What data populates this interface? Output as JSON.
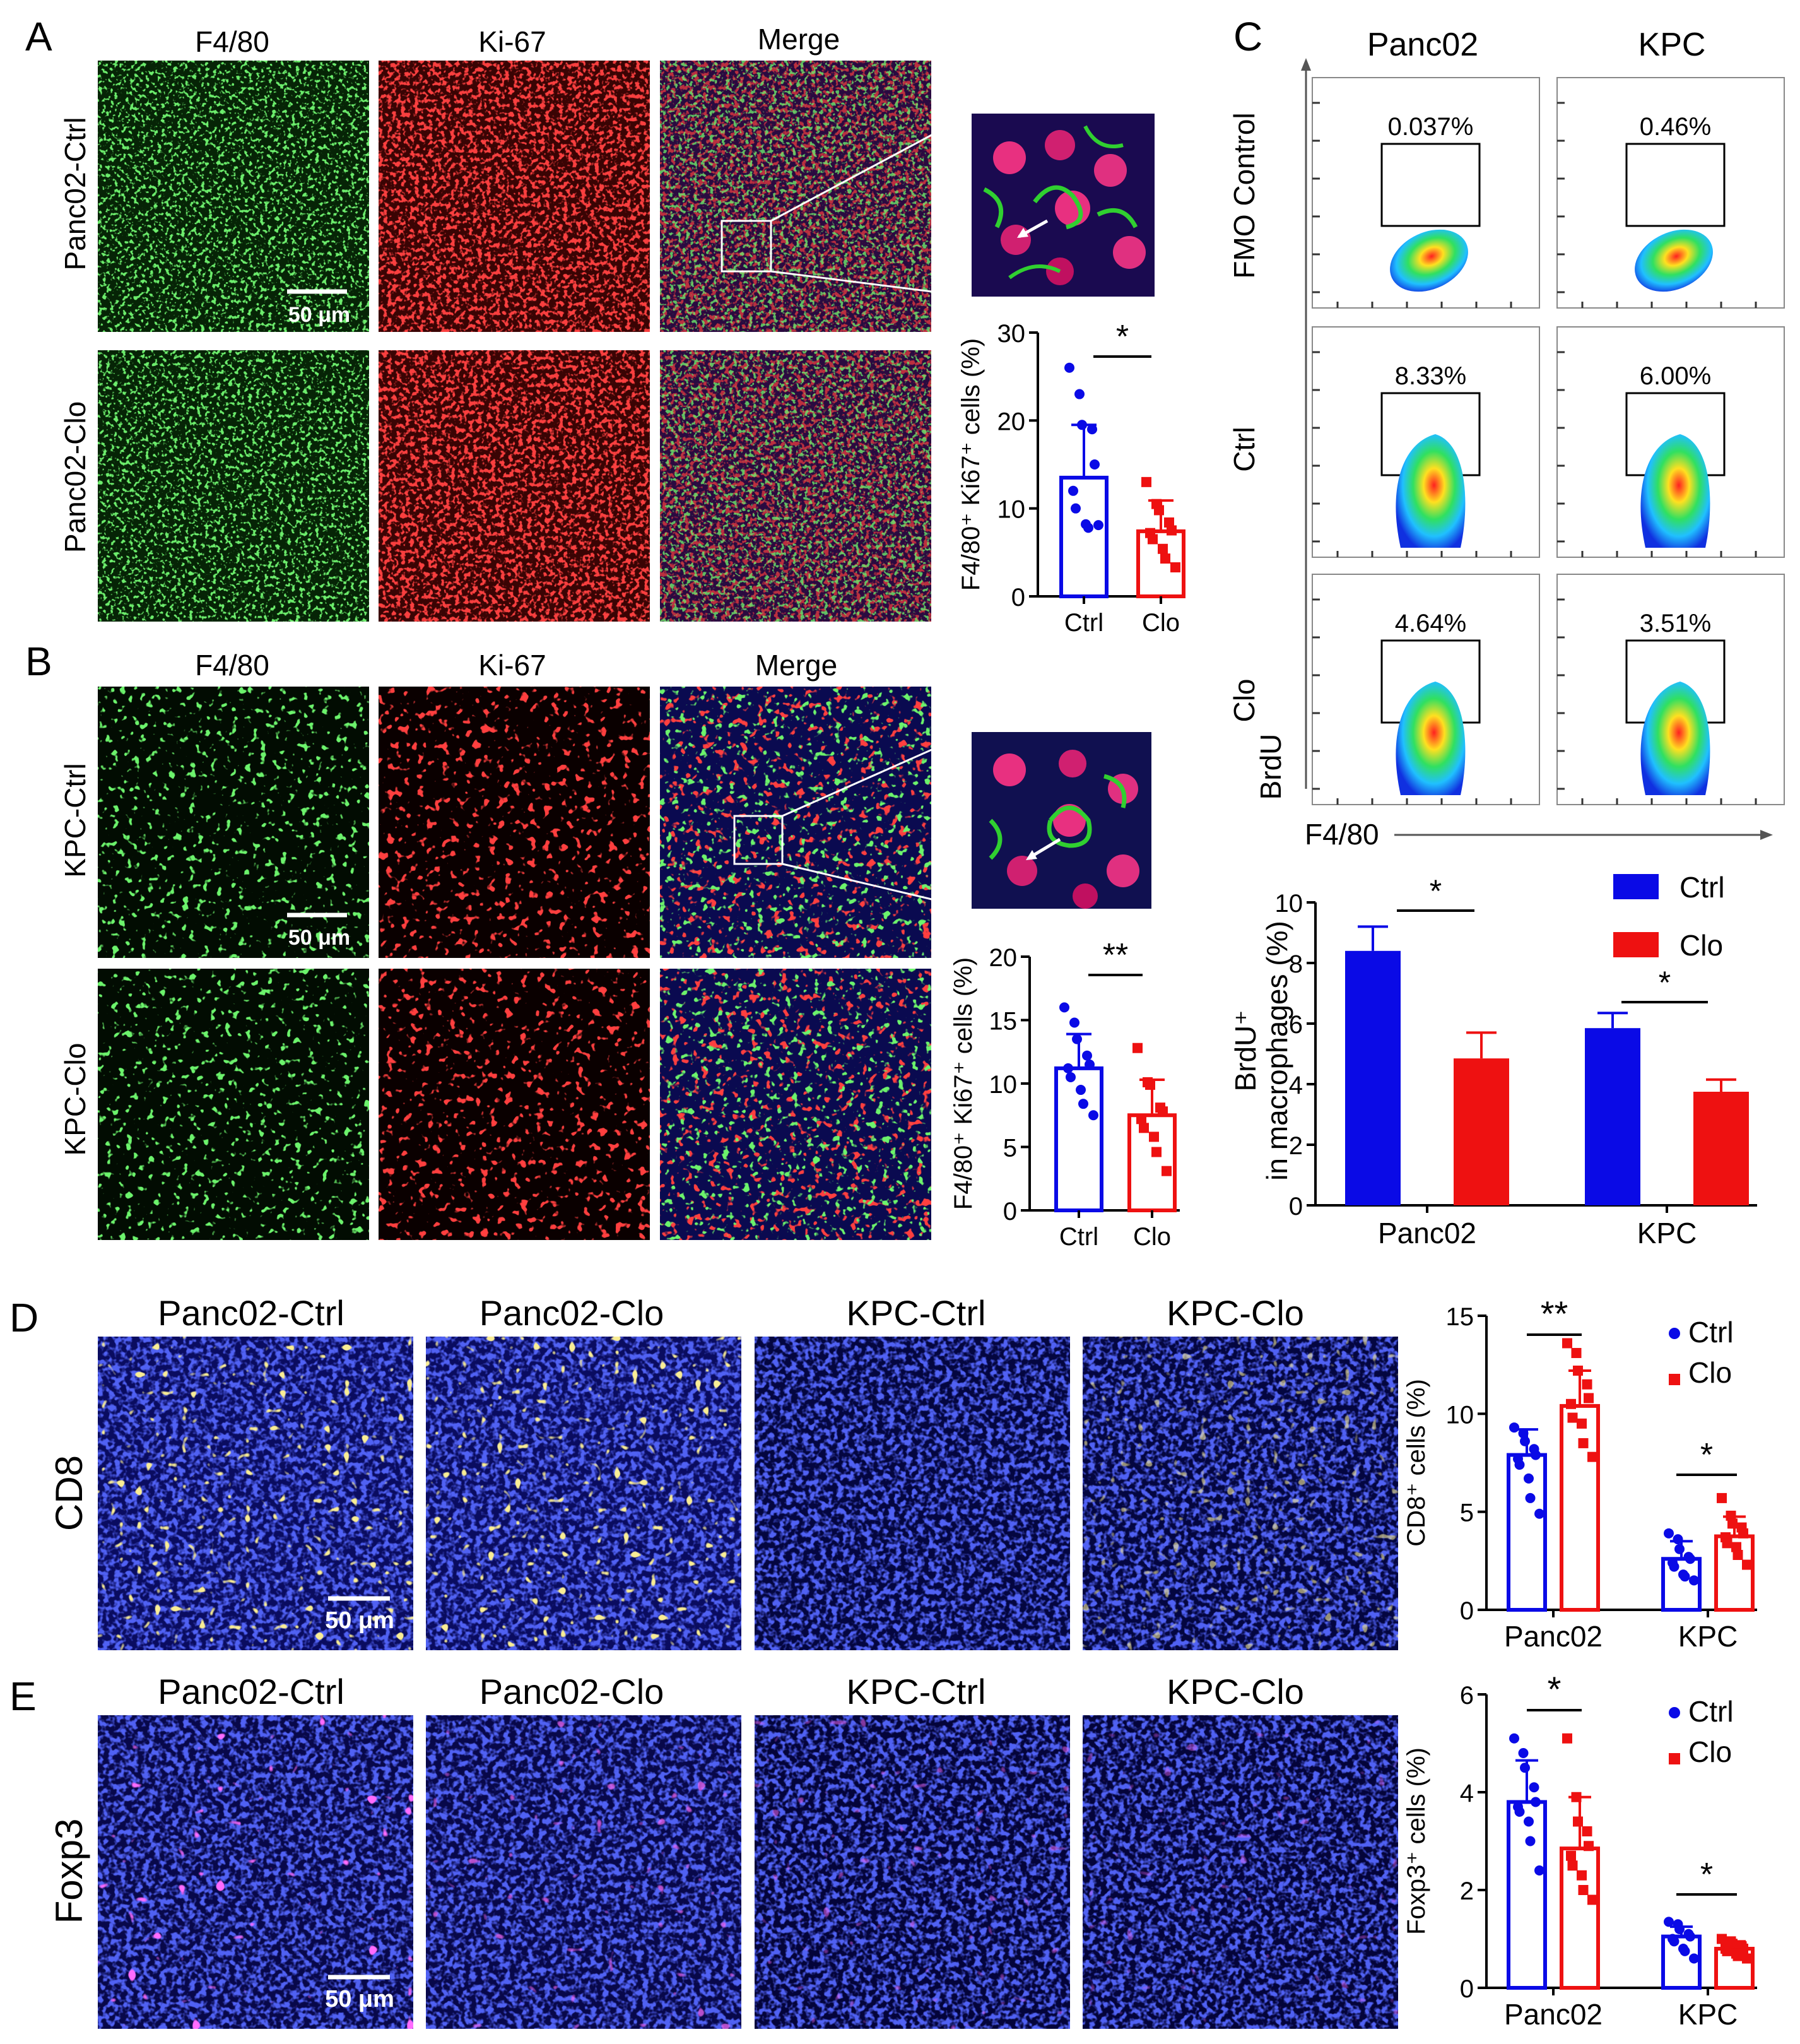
{
  "colors": {
    "ctrl": "#0a0ae6",
    "clo": "#ee1111",
    "f480_green": "#22aa22",
    "ki67_red": "#d81010",
    "dapi_blue": "#1020b0",
    "cd8_yellow": "#e8d040",
    "foxp3_magenta": "#ff22ff"
  },
  "panelA": {
    "letter": "A",
    "col_titles": [
      "F4/80",
      "Ki-67",
      "Merge"
    ],
    "row_labels": [
      "Panc02-Ctrl",
      "Panc02-Clo"
    ],
    "scale_bar": "50 μm",
    "ylabel": "F4/80⁺ Ki67⁺ cells (%)",
    "sig": "*"
  },
  "panelB": {
    "letter": "B",
    "col_titles": [
      "F4/80",
      "Ki-67",
      "Merge"
    ],
    "row_labels": [
      "KPC-Ctrl",
      "KPC-Clo"
    ],
    "scale_bar": "50 μm",
    "ylabel": "F4/80⁺ Ki67⁺ cells (%)",
    "sig": "**"
  },
  "panelC": {
    "letter": "C",
    "col_titles": [
      "Panc02",
      "KPC"
    ],
    "row_labels": [
      "FMO Control",
      "Ctrl",
      "Clo"
    ],
    "gate_values": [
      [
        "0.037%",
        "0.46%"
      ],
      [
        "8.33%",
        "6.00%"
      ],
      [
        "4.64%",
        "3.51%"
      ]
    ],
    "x_axis": "F4/80",
    "y_axis": "BrdU",
    "bar_ylabel_1": "BrdU⁺",
    "bar_ylabel_2": "in macrophages (%)",
    "legend": [
      "Ctrl",
      "Clo"
    ],
    "sig": [
      "*",
      "*"
    ]
  },
  "panelD": {
    "letter": "D",
    "row_label": "CD8",
    "col_titles": [
      "Panc02-Ctrl",
      "Panc02-Clo",
      "KPC-Ctrl",
      "KPC-Clo"
    ],
    "scale_bar": "50 μm",
    "ylabel": "CD8⁺ cells (%)",
    "legend": [
      "Ctrl",
      "Clo"
    ],
    "sig": [
      "**",
      "*"
    ]
  },
  "panelE": {
    "letter": "E",
    "row_label": "Foxp3",
    "col_titles": [
      "Panc02-Ctrl",
      "Panc02-Clo",
      "KPC-Ctrl",
      "KPC-Clo"
    ],
    "scale_bar": "50 μm",
    "ylabel": "Foxp3⁺ cells (%)",
    "legend": [
      "Ctrl",
      "Clo"
    ],
    "sig": [
      "*",
      "*"
    ]
  },
  "chart_data": [
    {
      "id": "A",
      "type": "bar",
      "categories": [
        "Ctrl",
        "Clo"
      ],
      "ylim": [
        0,
        30
      ],
      "yticks": [
        0,
        10,
        20,
        30
      ],
      "ylabel": "F4/80⁺ Ki67⁺ cells (%)",
      "values": [
        13.5,
        7.4
      ],
      "errors": [
        6.0,
        3.5
      ],
      "points": [
        [
          26,
          23,
          19.5,
          19,
          15,
          12,
          10,
          8.2,
          7.8,
          8.1
        ],
        [
          13,
          10.5,
          9.8,
          8.4,
          7.5,
          7.2,
          6.5,
          5.4,
          4.3,
          3.3
        ]
      ],
      "significance": "*"
    },
    {
      "id": "B",
      "type": "bar",
      "categories": [
        "Ctrl",
        "Clo"
      ],
      "ylim": [
        0,
        20
      ],
      "yticks": [
        0,
        5,
        10,
        15,
        20
      ],
      "ylabel": "F4/80⁺ Ki67⁺ cells (%)",
      "values": [
        11.2,
        7.5
      ],
      "errors": [
        2.7,
        2.8
      ],
      "points": [
        [
          16,
          14.8,
          13.5,
          12.2,
          11.5,
          11.2,
          10.5,
          9.5,
          8.4,
          7.5
        ],
        [
          12.8,
          10.1,
          9.9,
          8.1,
          7.8,
          7.2,
          6.5,
          5.8,
          4.6,
          3.1
        ]
      ],
      "significance": "**"
    },
    {
      "id": "C",
      "type": "bar",
      "categories": [
        "Panc02",
        "KPC"
      ],
      "ylim": [
        0,
        10
      ],
      "yticks": [
        0,
        2,
        4,
        6,
        8,
        10
      ],
      "ylabel": "BrdU⁺ in macrophages (%)",
      "series": [
        {
          "name": "Ctrl",
          "values": [
            8.4,
            5.85
          ],
          "errors": [
            0.8,
            0.5
          ]
        },
        {
          "name": "Clo",
          "values": [
            4.85,
            3.75
          ],
          "errors": [
            0.85,
            0.4
          ]
        }
      ],
      "significance": [
        "*",
        "*"
      ]
    },
    {
      "id": "D",
      "type": "bar",
      "categories": [
        "Panc02",
        "KPC"
      ],
      "ylim": [
        0,
        15
      ],
      "yticks": [
        0,
        5,
        10,
        15
      ],
      "ylabel": "CD8⁺ cells (%)",
      "series": [
        {
          "name": "Ctrl",
          "values": [
            7.9,
            2.6
          ],
          "errors": [
            1.3,
            0.9
          ],
          "points": [
            [
              9.3,
              9.0,
              8.6,
              8.2,
              7.9,
              7.7,
              7.4,
              6.7,
              5.7,
              4.9
            ],
            [
              3.9,
              3.6,
              3.1,
              2.7,
              2.6,
              2.4,
              2.2,
              1.8,
              1.7,
              1.5
            ]
          ]
        },
        {
          "name": "Clo",
          "values": [
            10.4,
            3.75
          ],
          "errors": [
            1.8,
            1.0
          ],
          "points": [
            [
              13.6,
              13.1,
              12.2,
              11.5,
              10.8,
              10.5,
              9.8,
              9.5,
              8.5,
              7.8
            ],
            [
              5.7,
              4.8,
              4.4,
              4.2,
              3.9,
              3.7,
              3.4,
              3.2,
              2.8,
              2.3
            ]
          ]
        }
      ],
      "significance": [
        "**",
        "*"
      ]
    },
    {
      "id": "E",
      "type": "bar",
      "categories": [
        "Panc02",
        "KPC"
      ],
      "ylim": [
        0,
        6
      ],
      "yticks": [
        0,
        2,
        4,
        6
      ],
      "ylabel": "Foxp3⁺ cells (%)",
      "series": [
        {
          "name": "Ctrl",
          "values": [
            3.8,
            1.05
          ],
          "errors": [
            0.85,
            0.2
          ],
          "points": [
            [
              5.1,
              4.8,
              4.5,
              4.1,
              3.8,
              3.7,
              3.6,
              3.4,
              3.0,
              2.4
            ],
            [
              1.35,
              1.3,
              1.2,
              1.1,
              1.05,
              1.0,
              0.95,
              0.8,
              0.75,
              0.6
            ]
          ]
        },
        {
          "name": "Clo",
          "values": [
            2.85,
            0.8
          ],
          "errors": [
            1.05,
            0.15
          ],
          "points": [
            [
              5.1,
              3.9,
              3.4,
              3.2,
              2.9,
              2.7,
              2.5,
              2.3,
              2.0,
              1.8
            ],
            [
              1.0,
              0.95,
              0.9,
              0.85,
              0.8,
              0.8,
              0.75,
              0.7,
              0.65,
              0.6
            ]
          ]
        }
      ],
      "significance": [
        "*",
        "*"
      ]
    }
  ]
}
